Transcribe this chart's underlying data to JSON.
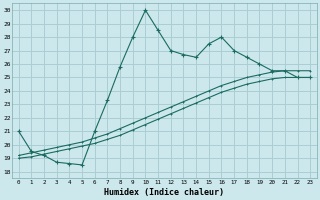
{
  "xlabel": "Humidex (Indice chaleur)",
  "bg_color": "#cce8ec",
  "grid_color": "#aacdd4",
  "line_color": "#1a6b60",
  "xlim": [
    -0.5,
    23.5
  ],
  "ylim": [
    17.5,
    30.5
  ],
  "yticks": [
    18,
    19,
    20,
    21,
    22,
    23,
    24,
    25,
    26,
    27,
    28,
    29,
    30
  ],
  "xticks": [
    0,
    1,
    2,
    3,
    4,
    5,
    6,
    7,
    8,
    9,
    10,
    11,
    12,
    13,
    14,
    15,
    16,
    17,
    18,
    19,
    20,
    21,
    22,
    23
  ],
  "line1_x": [
    0,
    1,
    2,
    3,
    4,
    5,
    6,
    7,
    8,
    9,
    10,
    11,
    12,
    13,
    14,
    15,
    16,
    17,
    18,
    19,
    20,
    21,
    22,
    23
  ],
  "line1_y": [
    21.0,
    19.5,
    19.2,
    18.7,
    18.6,
    18.5,
    21.0,
    23.3,
    25.8,
    28.0,
    30.0,
    28.5,
    27.0,
    26.7,
    26.5,
    27.5,
    28.0,
    27.0,
    26.5,
    26.0,
    25.5,
    25.5,
    25.0,
    25.0
  ],
  "line2_x": [
    0,
    1,
    2,
    3,
    4,
    5,
    6,
    7,
    8,
    9,
    10,
    11,
    12,
    13,
    14,
    15,
    16,
    17,
    18,
    19,
    20,
    21,
    22,
    23
  ],
  "line2_y": [
    19.2,
    19.4,
    19.6,
    19.8,
    20.0,
    20.2,
    20.5,
    20.8,
    21.2,
    21.6,
    22.0,
    22.4,
    22.8,
    23.2,
    23.6,
    24.0,
    24.4,
    24.7,
    25.0,
    25.2,
    25.4,
    25.5,
    25.5,
    25.5
  ],
  "line3_x": [
    0,
    1,
    2,
    3,
    4,
    5,
    6,
    7,
    8,
    9,
    10,
    11,
    12,
    13,
    14,
    15,
    16,
    17,
    18,
    19,
    20,
    21,
    22,
    23
  ],
  "line3_y": [
    19.0,
    19.1,
    19.3,
    19.5,
    19.7,
    19.9,
    20.1,
    20.4,
    20.7,
    21.1,
    21.5,
    21.9,
    22.3,
    22.7,
    23.1,
    23.5,
    23.9,
    24.2,
    24.5,
    24.7,
    24.9,
    25.0,
    25.0,
    25.0
  ]
}
